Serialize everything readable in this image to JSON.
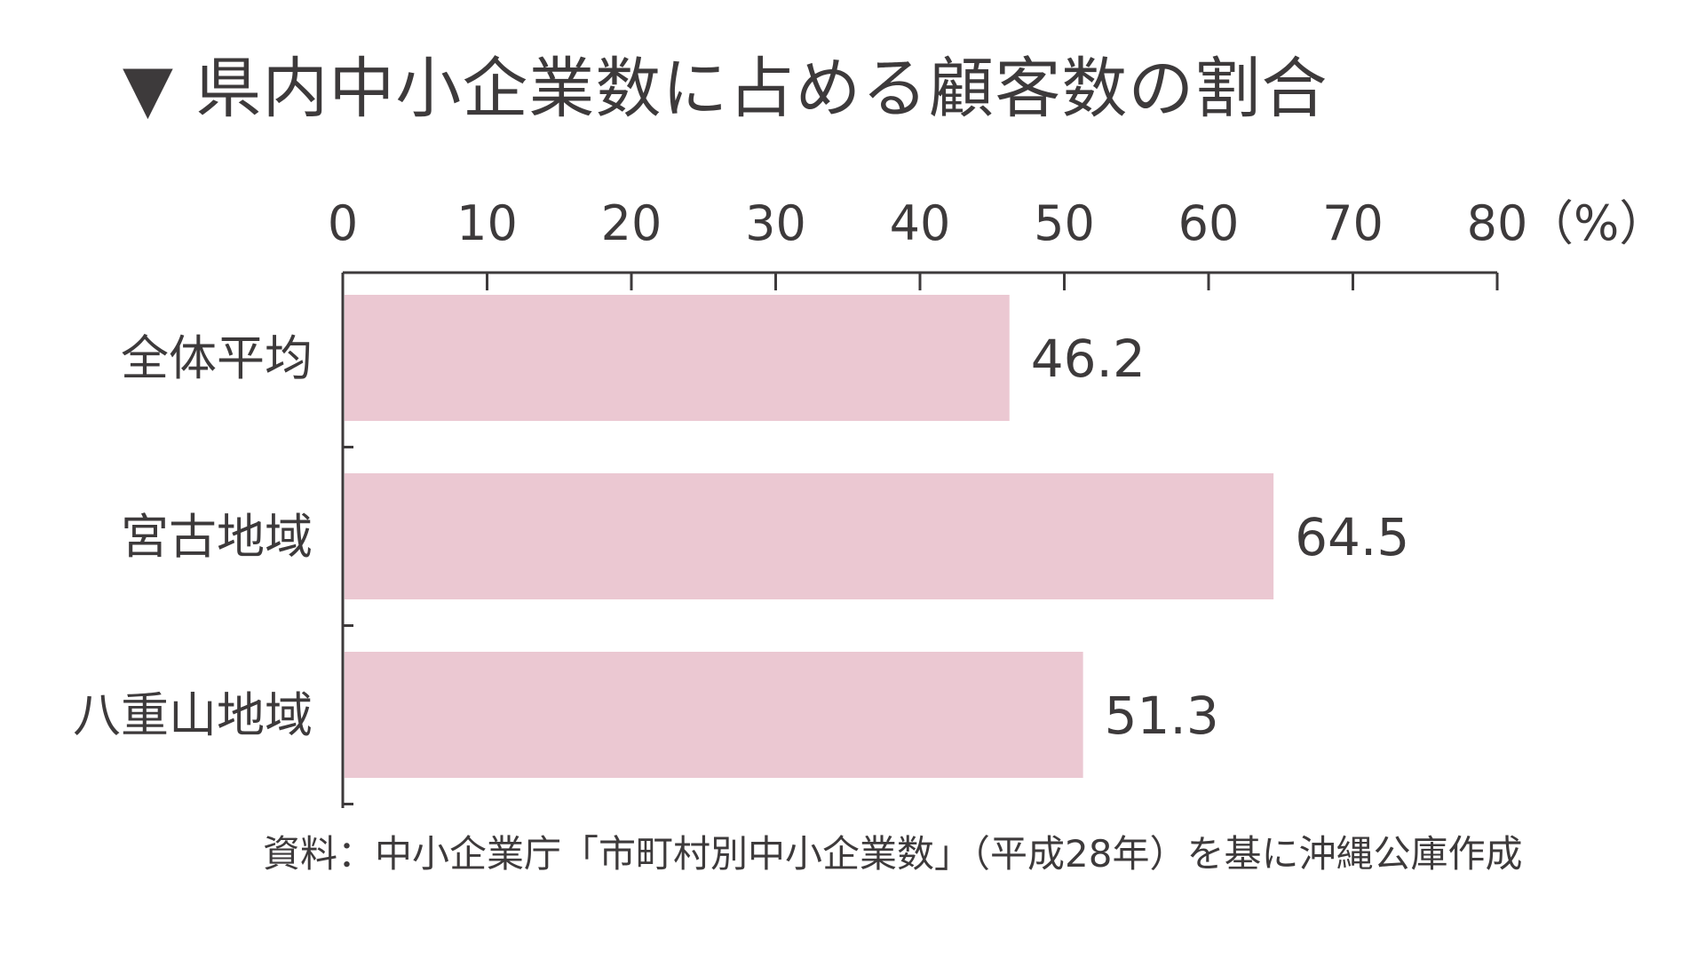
{
  "chart_data": {
    "type": "bar",
    "orientation": "horizontal",
    "title": "▼ 県内中小企業数に占める顧客数の割合",
    "unit_label": "（%）",
    "categories": [
      "全体平均",
      "宮古地域",
      "八重山地域"
    ],
    "values": [
      46.2,
      64.5,
      51.3
    ],
    "value_labels": [
      "46.2",
      "64.5",
      "51.3"
    ],
    "xlim": [
      0,
      80
    ],
    "x_ticks": [
      0,
      10,
      20,
      30,
      40,
      50,
      60,
      70,
      80
    ],
    "x_tick_labels": [
      "0",
      "10",
      "20",
      "30",
      "40",
      "50",
      "60",
      "70",
      "80"
    ],
    "axis_position": "top",
    "grid": false,
    "legend": "none",
    "bar_color": "#ebc8d2",
    "text_color": "#3d3a3b",
    "source": "資料：中小企業庁「市町村別中小企業数」（平成28年）を基に沖縄公庫作成"
  }
}
